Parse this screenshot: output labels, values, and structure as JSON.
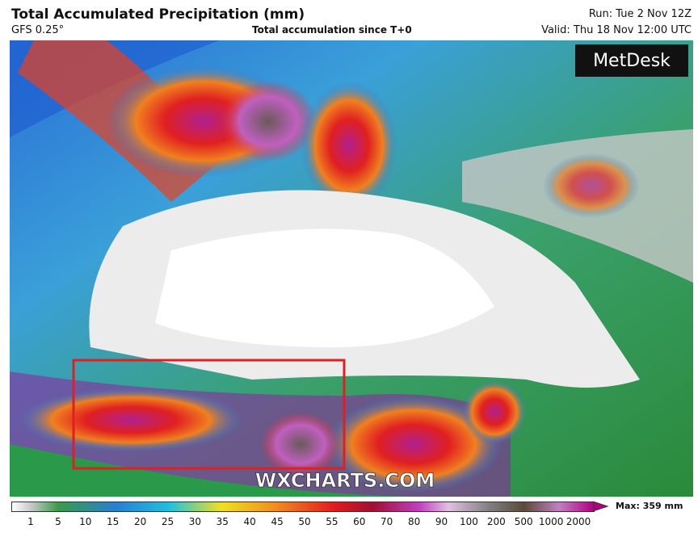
{
  "header": {
    "title": "Total Accumulated Precipitation (mm)",
    "model": "GFS 0.25°",
    "subtitle": "Total accumulation since T+0",
    "run": "Run: Tue 2 Nov 12Z",
    "valid": "Valid: Thu 18 Nov 12:00 UTC"
  },
  "logo": "MetDesk",
  "watermark": "WXCHARTS.COM",
  "legend": {
    "ticks": [
      1,
      5,
      10,
      15,
      20,
      25,
      30,
      35,
      40,
      45,
      50,
      55,
      60,
      70,
      80,
      90,
      100,
      200,
      500,
      1000,
      2000
    ],
    "max": "Max: 359 mm"
  }
}
